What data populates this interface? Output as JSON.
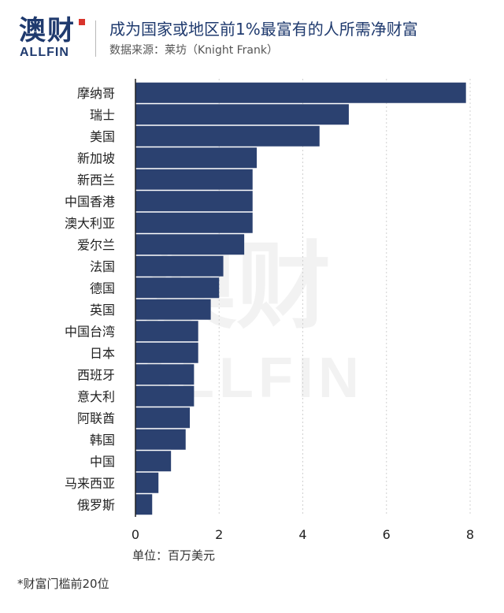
{
  "brand": {
    "cn": "澳财",
    "en": "ALLFIN",
    "color": "#1f3a6e",
    "accent": "#d8342c"
  },
  "header": {
    "title": "成为国家或地区前1%最富有的人所需净财富",
    "subtitle": "数据来源：莱坊（Knight Frank）"
  },
  "chart_data": {
    "type": "bar",
    "orientation": "horizontal",
    "bar_color": "#2b4170",
    "categories": [
      "摩纳哥",
      "瑞士",
      "美国",
      "新加坡",
      "新西兰",
      "中国香港",
      "澳大利亚",
      "爱尔兰",
      "法国",
      "德国",
      "英国",
      "中国台湾",
      "日本",
      "西班牙",
      "意大利",
      "阿联酋",
      "韩国",
      "中国",
      "马来西亚",
      "俄罗斯"
    ],
    "values": [
      7.9,
      5.1,
      4.4,
      2.9,
      2.8,
      2.8,
      2.8,
      2.6,
      2.1,
      2.0,
      1.8,
      1.5,
      1.5,
      1.4,
      1.4,
      1.3,
      1.2,
      0.85,
      0.55,
      0.4
    ],
    "xlim": [
      0,
      8
    ],
    "xticks": [
      "0",
      "2",
      "4",
      "6",
      "8"
    ],
    "xlabel": "单位：百万美元",
    "grid": true
  },
  "footnote": "*财富门槛前20位"
}
